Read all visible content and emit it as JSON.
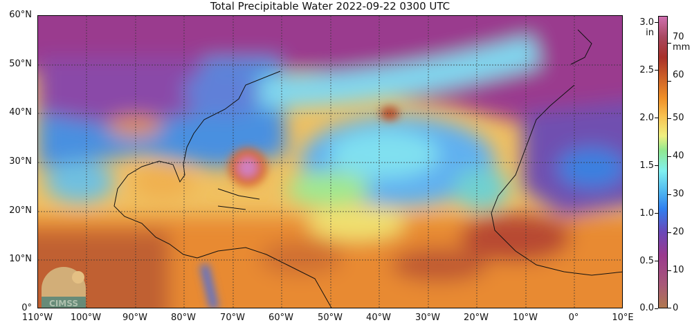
{
  "title": "Total Precipitable Water  2022-09-22 0300 UTC",
  "map": {
    "lat_labels": [
      "60°N",
      "50°N",
      "40°N",
      "30°N",
      "20°N",
      "10°N",
      "0°"
    ],
    "lon_labels": [
      "110°W",
      "100°W",
      "90°W",
      "80°W",
      "70°W",
      "60°W",
      "50°W",
      "40°W",
      "30°W",
      "20°W",
      "10°W",
      "0°",
      "10°E"
    ],
    "logo_text": "CIMSS",
    "extent": {
      "lon": [
        -110,
        10
      ],
      "lat": [
        0,
        60
      ]
    },
    "gridlines": "dashed every 10°"
  },
  "colorbar": {
    "unit_left": "in",
    "unit_right": "mm",
    "inch_ticks": [
      "0.0",
      "0.5",
      "1.0",
      "1.5",
      "2.0",
      "2.5",
      "3.0"
    ],
    "mm_ticks": [
      "0",
      "10",
      "20",
      "30",
      "40",
      "50",
      "60",
      "70"
    ],
    "colors": [
      "#b07850",
      "#9a3a8e",
      "#3080f0",
      "#80f0f0",
      "#f0f080",
      "#f09028",
      "#a8302a",
      "#d070b0"
    ]
  }
}
